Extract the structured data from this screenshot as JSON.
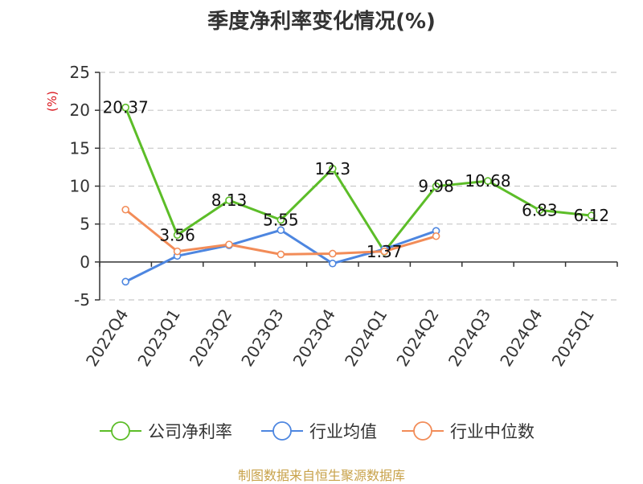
{
  "title": "季度净利率变化情况(%)",
  "source": "制图数据来自恒生聚源数据库",
  "chart_data": {
    "type": "line",
    "unit_label": "(%)",
    "categories": [
      "2022Q4",
      "2023Q1",
      "2023Q2",
      "2023Q3",
      "2023Q4",
      "2024Q1",
      "2024Q2",
      "2024Q3",
      "2024Q4",
      "2025Q1"
    ],
    "ylim": [
      -5,
      25
    ],
    "yticks": [
      -5,
      0,
      5,
      10,
      15,
      20,
      25
    ],
    "grid": true,
    "legend_position": "bottom",
    "series": [
      {
        "name": "公司净利率",
        "color": "#5cbd28",
        "show_labels": true,
        "labels": [
          "20.37",
          "3.56",
          "8.13",
          "5.55",
          "12.3",
          "1.37",
          "9.98",
          "10.68",
          "6.83",
          "6.12"
        ],
        "values": [
          20.37,
          3.56,
          8.13,
          5.55,
          12.3,
          1.37,
          9.98,
          10.68,
          6.83,
          6.12
        ]
      },
      {
        "name": "行业均值",
        "color": "#4d86e0",
        "show_labels": false,
        "values": [
          -2.6,
          0.8,
          2.2,
          4.2,
          -0.2,
          1.7,
          4.1,
          null,
          null,
          null
        ]
      },
      {
        "name": "行业中位数",
        "color": "#f28c58",
        "show_labels": false,
        "values": [
          6.9,
          1.4,
          2.3,
          1.0,
          1.1,
          1.4,
          3.4,
          null,
          null,
          null
        ]
      }
    ]
  }
}
